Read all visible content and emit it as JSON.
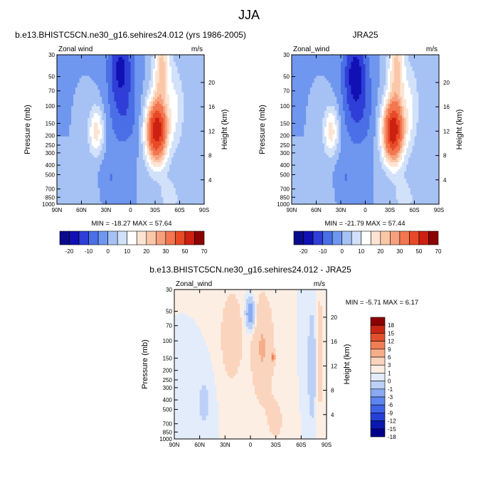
{
  "figure": {
    "title": "JJA",
    "x_ticks": [
      "90N",
      "60N",
      "30N",
      "0",
      "30S",
      "60S",
      "90S"
    ],
    "p_ticks": [
      "30",
      "50",
      "70",
      "100",
      "150",
      "200",
      "250",
      "300",
      "400",
      "500",
      "700",
      "850",
      "1000"
    ],
    "h_ticks": [
      "20",
      "16",
      "12",
      "8",
      "4"
    ],
    "ylabel": "Pressure (mb)",
    "y2label": "Height (km)"
  },
  "chart_data": [
    {
      "type": "heatmap",
      "title": "b.e13.BHISTC5CN.ne30_g16.sehires24.012 (yrs 1986-2005)",
      "variable": "Zonal wind",
      "units": "m/s",
      "stats": "MIN = -18.27  MAX =  57.64",
      "levels": [
        -20,
        -15,
        -10,
        -5,
        0,
        5,
        10,
        15,
        20,
        25,
        30,
        40,
        50,
        60,
        70
      ],
      "colorbar_labels": [
        "-20",
        "-10",
        "0",
        "10",
        "20",
        "30",
        "50",
        "70"
      ],
      "field": {
        "neg_core_lat": -22,
        "pos_core_lat": 40,
        "pos_core_p": 200,
        "pos_core_value": 57.64,
        "neg_min_value": -18.27,
        "subtrop_jet_lat": 45,
        "subtrop_jet_p": 200
      },
      "xlim": [
        "90N",
        "90S"
      ],
      "ylim": [
        1000,
        30
      ]
    },
    {
      "type": "heatmap",
      "title": "JRA25",
      "variable": "Zonal_wind",
      "units": "m/s",
      "stats": "MIN = -21.79  MAX =  57.44",
      "levels": [
        -20,
        -15,
        -10,
        -5,
        0,
        5,
        10,
        15,
        20,
        25,
        30,
        40,
        50,
        60,
        70
      ],
      "colorbar_labels": [
        "-20",
        "-10",
        "0",
        "10",
        "20",
        "30",
        "50",
        "70"
      ],
      "xlim": [
        "90N",
        "90S"
      ],
      "ylim": [
        1000,
        30
      ]
    },
    {
      "type": "heatmap",
      "title": "b.e13.BHISTC5CN.ne30_g16.sehires24.012 - JRA25",
      "variable": "Zonal_wind",
      "units": "m/s",
      "stats": "MIN =  -5.71  MAX =   6.17",
      "levels": [
        -18,
        -15,
        -12,
        -9,
        -6,
        -3,
        -1,
        0,
        1,
        3,
        6,
        9,
        12,
        15,
        18
      ],
      "colorbar_labels": [
        "18",
        "15",
        "12",
        "9",
        "6",
        "3",
        "1",
        "0",
        "-1",
        "-3",
        "-6",
        "-9",
        "-12",
        "-15",
        "-18"
      ],
      "xlim": [
        "90N",
        "90S"
      ],
      "ylim": [
        1000,
        30
      ]
    }
  ],
  "colors": {
    "abs_palette": [
      "#0a0a8c",
      "#1010b4",
      "#2e3ed6",
      "#4a6fe6",
      "#6f97ef",
      "#a6c2f4",
      "#d2e1fa",
      "#ffffff",
      "#fde4d2",
      "#fbc7a9",
      "#f7a07d",
      "#f2764f",
      "#e84a27",
      "#cc2011",
      "#8c0000"
    ],
    "diff_palette": [
      "#00008a",
      "#0a18b0",
      "#2440d6",
      "#3f62e6",
      "#5e86ee",
      "#8aaaf2",
      "#bcd0f7",
      "#e2ecfb",
      "#fdeee4",
      "#fad4bd",
      "#f6ae8a",
      "#ef7d55",
      "#e2502c",
      "#c82514",
      "#8a0000"
    ]
  }
}
